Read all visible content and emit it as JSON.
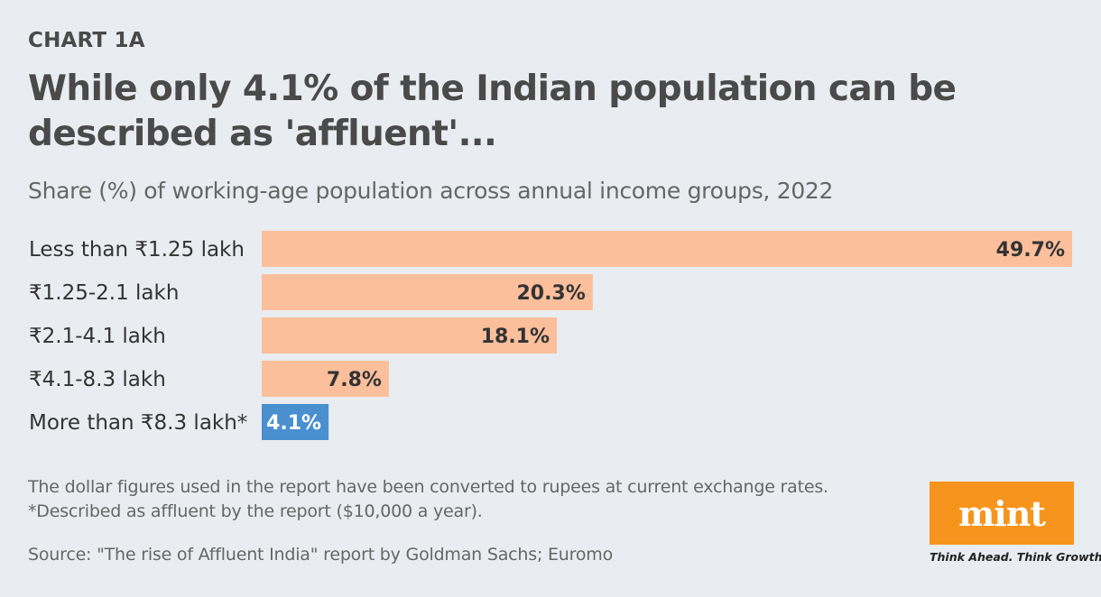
{
  "header": {
    "chart_label": "CHART 1A",
    "title": "While only 4.1% of the Indian population can be described as 'affluent'...",
    "subtitle": "Share (%) of working-age population across annual income groups, 2022"
  },
  "chart_data": {
    "type": "bar",
    "orientation": "horizontal",
    "categories": [
      "Less than ₹1.25 lakh",
      "₹1.25-2.1 lakh",
      "₹2.1-4.1 lakh",
      "₹4.1-8.3 lakh",
      "More than ₹8.3 lakh*"
    ],
    "values": [
      49.7,
      20.3,
      18.1,
      7.8,
      4.1
    ],
    "data_labels": [
      "49.7%",
      "20.3%",
      "18.1%",
      "7.8%",
      "4.1%"
    ],
    "xlim": [
      0,
      49.7
    ],
    "bar_colors": [
      "#fbbf9c",
      "#fbbf9c",
      "#fbbf9c",
      "#fbbf9c",
      "#4a8fd0"
    ],
    "label_colors": [
      "#333333",
      "#333333",
      "#333333",
      "#333333",
      "#ffffff"
    ],
    "grid": false
  },
  "footer": {
    "note1": "The dollar figures used in the report have been converted to rupees at current exchange rates.",
    "note2": "*Described as affluent by the report ($10,000 a year).",
    "source": "Source: \"The rise of Affluent India\" report by Goldman Sachs; Euromo"
  },
  "branding": {
    "logo_text": "mint",
    "tagline": "Think Ahead. Think Growth.",
    "logo_color": "#f7941d"
  }
}
